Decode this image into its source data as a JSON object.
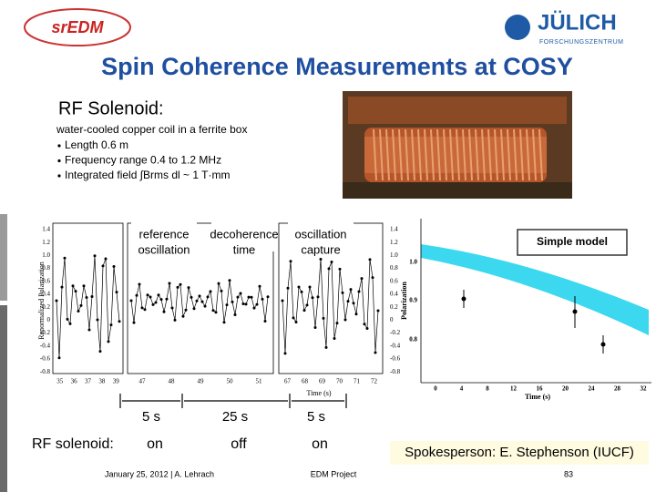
{
  "header": {
    "logo_left": "srEDM",
    "logo_right": "JÜLICH",
    "logo_right_sub": "FORSCHUNGSZENTRUM",
    "title": "Spin Coherence Measurements at COSY"
  },
  "intro": {
    "heading": "RF Solenoid:",
    "description": "water-cooled copper coil in a ferrite box",
    "bullets": [
      "Length 0.6 m",
      "Frequency range 0.4 to 1.2 MHz",
      "Integrated field ∫Brms dl ~ 1 T·mm"
    ]
  },
  "left_plot": {
    "y_label": "Renormalized Polarization",
    "x_label": "Time (s)",
    "y_ticks": [
      "1.4",
      "1.2",
      "1.0",
      "0.8",
      "0.6",
      "0.4",
      "0.2",
      "0",
      "-0.2",
      "-0.4",
      "-0.6",
      "-0.8"
    ],
    "x_ticks": [
      [
        "35",
        "36",
        "37",
        "38",
        "39"
      ],
      [
        "47",
        "48",
        "49",
        "50",
        "51"
      ],
      [
        "67",
        "68",
        "69",
        "70",
        "71",
        "72"
      ]
    ],
    "phases": [
      {
        "label": [
          "reference",
          "oscillation"
        ],
        "duration": "5 s",
        "solenoid": "on"
      },
      {
        "label": [
          "decoherence",
          "time"
        ],
        "duration": "25 s",
        "solenoid": "off"
      },
      {
        "label": [
          "oscillation",
          "capture"
        ],
        "duration": "5 s",
        "solenoid": "on"
      }
    ]
  },
  "right_plot": {
    "label": "Simple model",
    "x_label": "Time (s)",
    "y_label": "Polarization",
    "y_ticks": [
      "1.0",
      "0.9",
      "0.8"
    ],
    "x_ticks": [
      "0",
      "4",
      "8",
      "12",
      "16",
      "20",
      "24",
      "28",
      "32"
    ]
  },
  "solenoid_label": "RF solenoid:",
  "spokesperson": "Spokesperson: E. Stephenson (IUCF)",
  "footer": {
    "date_author": "January 25, 2012 | A. Lehrach",
    "project": "EDM Project",
    "page": "83"
  }
}
